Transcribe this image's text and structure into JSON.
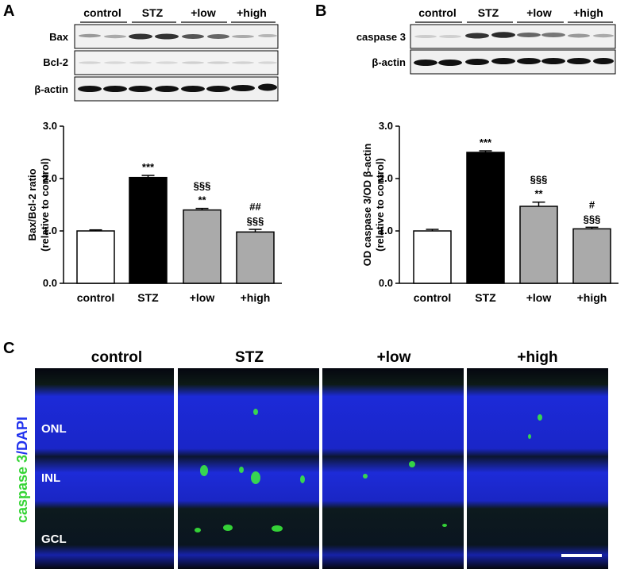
{
  "panel_labels": {
    "a": "A",
    "b": "B",
    "c": "C"
  },
  "blot_a": {
    "lanes": [
      "control",
      "STZ",
      "+low",
      "+high"
    ],
    "rows": [
      "Bax",
      "Bcl-2",
      "β-actin"
    ]
  },
  "blot_b": {
    "lanes": [
      "control",
      "STZ",
      "+low",
      "+high"
    ],
    "rows": [
      "caspase 3",
      "β-actin"
    ]
  },
  "chart_data": [
    {
      "type": "bar",
      "panel": "A",
      "title": "",
      "ylabel_line1": "Bax/Bcl-2 ratio",
      "ylabel_line2": "(relative to control)",
      "xlabel": "",
      "categories": [
        "control",
        "STZ",
        "+low",
        "+high"
      ],
      "values": [
        1.0,
        2.02,
        1.4,
        0.98
      ],
      "errors": [
        0.02,
        0.04,
        0.03,
        0.05
      ],
      "colors": [
        "#ffffff",
        "#000000",
        "#aaaaaa",
        "#aaaaaa"
      ],
      "ylim": [
        0,
        3.0
      ],
      "yticks": [
        "0.0",
        "1.0",
        "2.0",
        "3.0"
      ],
      "annotations": [
        [],
        [
          "***"
        ],
        [
          "§§§",
          "**"
        ],
        [
          "##",
          "§§§"
        ]
      ],
      "grid": false
    },
    {
      "type": "bar",
      "panel": "B",
      "title": "",
      "ylabel_line1": "OD caspase 3/OD β-actin",
      "ylabel_line2": "(relative to control)",
      "xlabel": "",
      "categories": [
        "control",
        "STZ",
        "+low",
        "+high"
      ],
      "values": [
        1.0,
        2.5,
        1.47,
        1.04
      ],
      "errors": [
        0.03,
        0.03,
        0.08,
        0.03
      ],
      "colors": [
        "#ffffff",
        "#000000",
        "#aaaaaa",
        "#aaaaaa"
      ],
      "ylim": [
        0,
        3.0
      ],
      "yticks": [
        "0.0",
        "1.0",
        "2.0",
        "3.0"
      ],
      "annotations": [
        [],
        [
          "***"
        ],
        [
          "§§§",
          "**"
        ],
        [
          "#",
          "§§§"
        ]
      ],
      "grid": false
    }
  ],
  "micrographs": {
    "titles": [
      "control",
      "STZ",
      "+low",
      "+high"
    ],
    "layers": [
      "ONL",
      "INL",
      "GCL"
    ],
    "stain_label_green": "caspase 3",
    "stain_label_blue": "/DAPI",
    "colors": {
      "dapi": "#1c2ad8",
      "caspase": "#3cf23c",
      "background": "#05061a"
    }
  }
}
